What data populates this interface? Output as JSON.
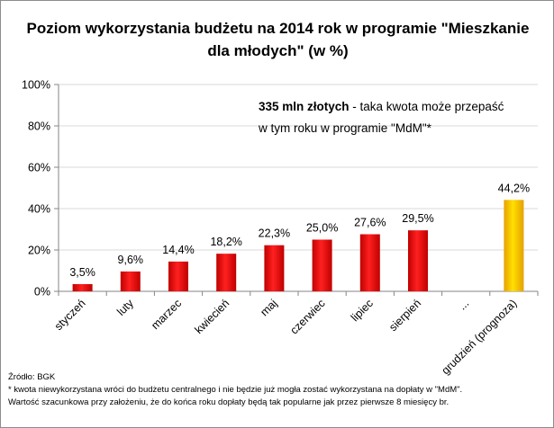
{
  "chart_data": {
    "type": "bar",
    "title_line1": "Poziom wykorzystania budżetu na 2014 rok w programie \"Mieszkanie",
    "title_line2": "dla młodych\" (w %)",
    "categories": [
      "styczeń",
      "luty",
      "marzec",
      "kwiecień",
      "maj",
      "czerwiec",
      "lipiec",
      "sierpień",
      "...",
      "grudzień (prognoza)"
    ],
    "values": [
      3.5,
      9.6,
      14.4,
      18.2,
      22.3,
      25.0,
      27.6,
      29.5,
      null,
      44.2
    ],
    "value_labels": [
      "3,5%",
      "9,6%",
      "14,4%",
      "18,2%",
      "22,3%",
      "25,0%",
      "27,6%",
      "29,5%",
      "",
      "44,2%"
    ],
    "highlight": [
      false,
      false,
      false,
      false,
      false,
      false,
      false,
      false,
      false,
      true
    ],
    "y_ticks": [
      0,
      20,
      40,
      60,
      80,
      100
    ],
    "y_tick_labels": [
      "0%",
      "20%",
      "40%",
      "60%",
      "80%",
      "100%"
    ],
    "ylim": [
      0,
      100
    ],
    "grid": true,
    "colors": {
      "bar": "#ff0000",
      "bar_dark": "#c00000",
      "highlight": "#ffc000",
      "highlight_light": "#ffe000",
      "grid": "#d9d9d9"
    }
  },
  "annotation": {
    "bold": "335 mln złotych",
    "rest": " - taka kwota może przepaść",
    "line2": "w tym roku w programie  \"MdM\"*"
  },
  "footer": {
    "source": "Źródło: BGK",
    "note1": "* kwota niewykorzystana wróci do budżetu centralnego i nie będzie już mogła zostać wykorzystana na dopłaty w \"MdM\".",
    "note2": "Wartość szacunkowa przy założeniu, że do końca roku dopłaty będą tak popularne jak przez pierwsze 8 miesięcy  br."
  }
}
